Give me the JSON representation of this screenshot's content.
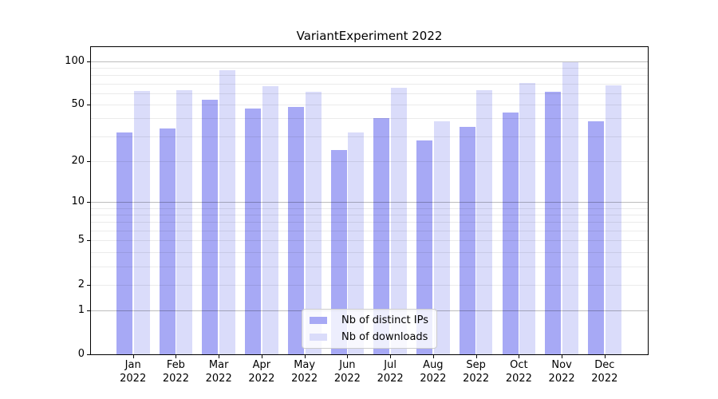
{
  "chart_data": {
    "type": "bar",
    "title": "VariantExperiment 2022",
    "year_label": "2022",
    "categories": [
      "Jan",
      "Feb",
      "Mar",
      "Apr",
      "May",
      "Jun",
      "Jul",
      "Aug",
      "Sep",
      "Oct",
      "Nov",
      "Dec"
    ],
    "series": [
      {
        "name": "Nb of distinct IPs",
        "key": "distinct-ips",
        "color": "#a7a9f5",
        "values": [
          32,
          34,
          54,
          47,
          48,
          24,
          40,
          28,
          35,
          44,
          61,
          38
        ]
      },
      {
        "name": "Nb of downloads",
        "key": "downloads",
        "color": "#dadcfa",
        "values": [
          62,
          63,
          87,
          67,
          61,
          32,
          65,
          38,
          63,
          71,
          98,
          68
        ]
      }
    ],
    "yscale": "log1p",
    "ylim": [
      0,
      125
    ],
    "xlabel": "",
    "ylabel": "",
    "y_ticks": [
      0,
      1,
      2,
      5,
      10,
      20,
      50,
      100
    ],
    "y_major_gridlines": [
      1,
      10,
      100
    ],
    "y_minor_gridlines": [
      2,
      3,
      4,
      5,
      6,
      7,
      8,
      9,
      20,
      30,
      40,
      50,
      60,
      70,
      80,
      90
    ],
    "grid": true,
    "legend_position": "lower center"
  },
  "colors": {
    "background": "#ffffff",
    "spine": "#000000",
    "text": "#000000",
    "grid_major": "rgba(0,0,0,0.26)",
    "grid_minor": "rgba(0,0,0,0.08)",
    "legend_border": "#cccccc",
    "legend_background": "rgba(255,255,255,0.8)"
  }
}
